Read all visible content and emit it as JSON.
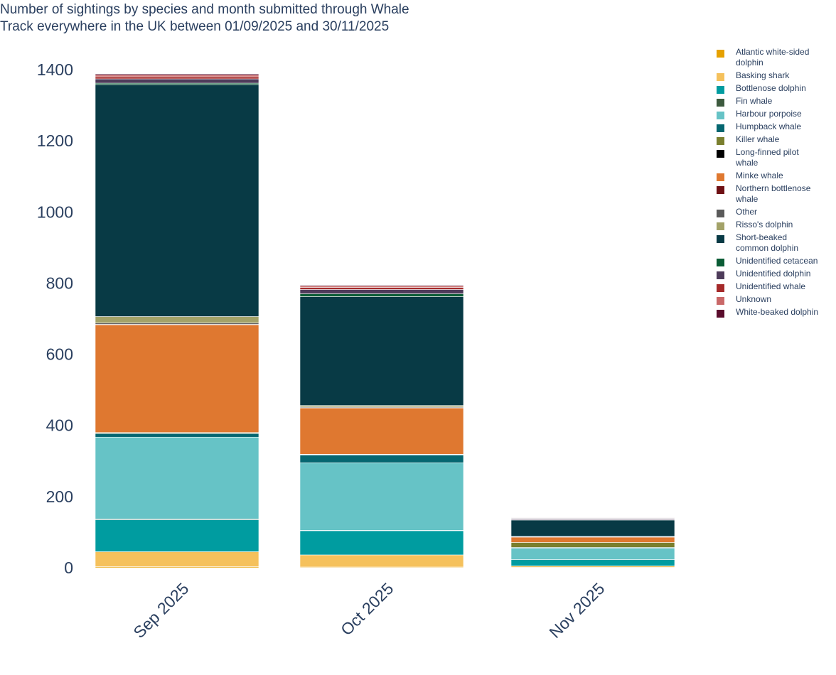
{
  "chart_data": {
    "type": "bar",
    "stacked": true,
    "title_lines": [
      "Number of sightings by species and month submitted through Whale",
      "Track everywhere in the UK between 01/09/2025 and 30/11/2025"
    ],
    "categories": [
      "Sep 2025",
      "Oct 2025",
      "Nov 2025"
    ],
    "ylim": [
      0,
      1400
    ],
    "yticks": [
      0,
      200,
      400,
      600,
      800,
      1000,
      1200,
      1400
    ],
    "grid": false,
    "legend_position": "right",
    "series": [
      {
        "name": "Atlantic white-sided\ndolphin",
        "color": "#e6a100",
        "values": [
          3,
          2,
          1
        ]
      },
      {
        "name": "Basking shark",
        "color": "#f5c15c",
        "values": [
          42,
          34,
          4
        ]
      },
      {
        "name": "Bottlenose dolphin",
        "color": "#009ca0",
        "values": [
          90,
          68,
          18
        ]
      },
      {
        "name": "Fin whale",
        "color": "#3d5a3e",
        "values": [
          2,
          1,
          0
        ]
      },
      {
        "name": "Harbour porpoise",
        "color": "#66c3c6",
        "values": [
          230,
          190,
          32
        ]
      },
      {
        "name": "Humpback whale",
        "color": "#056670",
        "values": [
          10,
          22,
          2
        ]
      },
      {
        "name": "Killer whale",
        "color": "#7a7f2e",
        "values": [
          2,
          1,
          14
        ]
      },
      {
        "name": "Long-finned pilot\n whale",
        "color": "#000000",
        "values": [
          1,
          1,
          0
        ]
      },
      {
        "name": "Minke whale",
        "color": "#df7830",
        "values": [
          303,
          130,
          15
        ]
      },
      {
        "name": "Northern bottlenose\n whale",
        "color": "#6e1014",
        "values": [
          1,
          1,
          0
        ]
      },
      {
        "name": "Other",
        "color": "#5a5a5a",
        "values": [
          4,
          2,
          1
        ]
      },
      {
        "name": "Risso's dolphin",
        "color": "#a3a268",
        "values": [
          18,
          4,
          1
        ]
      },
      {
        "name": "Short-beaked\n common dolphin",
        "color": "#083a45",
        "values": [
          652,
          306,
          46
        ]
      },
      {
        "name": "Unidentified cetacean",
        "color": "#0a5c35",
        "values": [
          4,
          8,
          1
        ]
      },
      {
        "name": "Unidentified dolphin",
        "color": "#4e3b5a",
        "values": [
          12,
          12,
          3
        ]
      },
      {
        "name": "Unidentified whale",
        "color": "#a52a2a",
        "values": [
          6,
          6,
          1
        ]
      },
      {
        "name": "Unknown",
        "color": "#c96868",
        "values": [
          5,
          4,
          1
        ]
      },
      {
        "name": "White-beaked dolphin",
        "color": "#5a0c2c",
        "values": [
          3,
          2,
          1
        ]
      }
    ]
  }
}
